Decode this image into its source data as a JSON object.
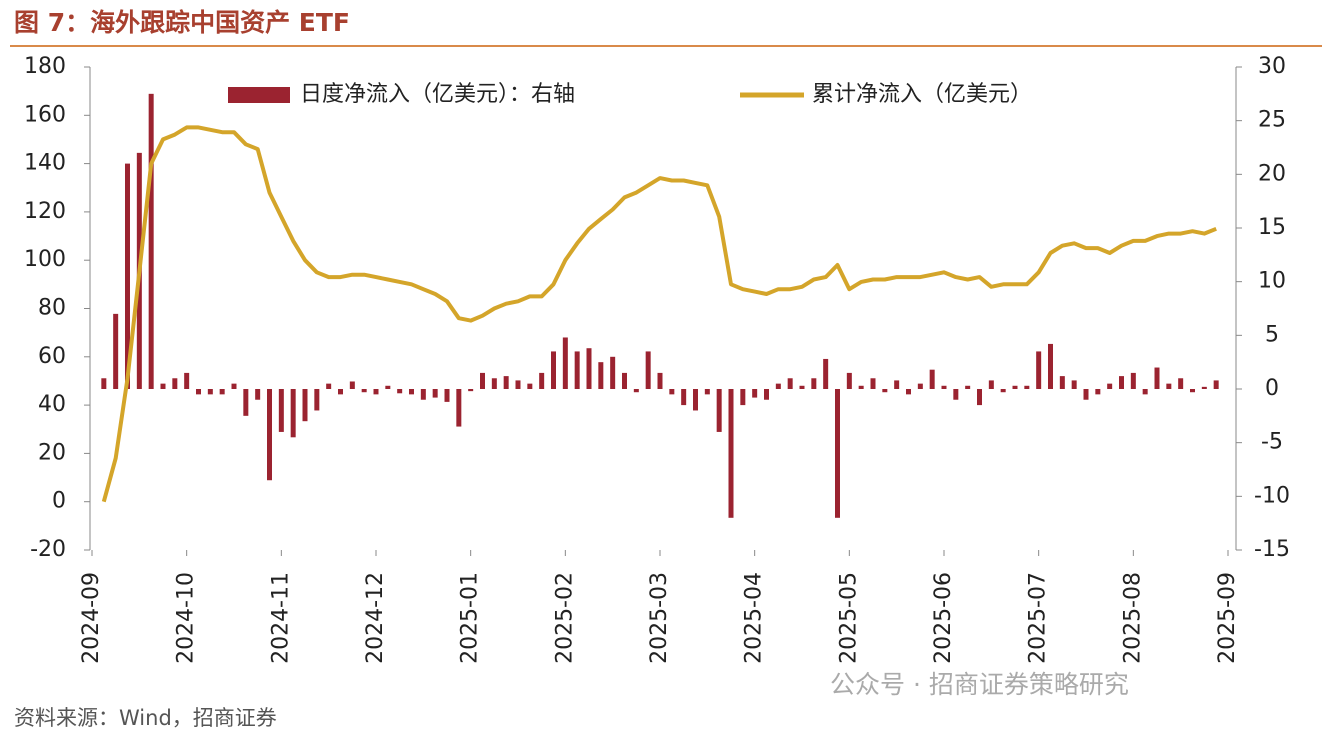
{
  "chart_data": {
    "type": "combo",
    "title": "图 7：海外跟踪中国资产 ETF",
    "source": "资料来源：Wind，招商证券",
    "watermark": "公众号 · 招商证券策略研究",
    "categories": [
      "2024-09",
      null,
      null,
      null,
      null,
      null,
      null,
      null,
      "2024-10",
      null,
      null,
      null,
      null,
      null,
      null,
      null,
      "2024-11",
      null,
      null,
      null,
      null,
      null,
      null,
      null,
      "2024-12",
      null,
      null,
      null,
      null,
      null,
      null,
      null,
      "2025-01",
      null,
      null,
      null,
      null,
      null,
      null,
      null,
      "2025-02",
      null,
      null,
      null,
      null,
      null,
      null,
      null,
      "2025-03",
      null,
      null,
      null,
      null,
      null,
      null,
      null,
      "2025-04",
      null,
      null,
      null,
      null,
      null,
      null,
      null,
      "2025-05",
      null,
      null,
      null,
      null,
      null,
      null,
      null,
      "2025-06",
      null,
      null,
      null,
      null,
      null,
      null,
      null,
      "2025-07",
      null,
      null,
      null,
      null,
      null,
      null,
      null,
      "2025-08",
      null,
      null,
      null,
      null,
      null,
      null,
      null,
      "2025-09"
    ],
    "ylim": [
      -20,
      180
    ],
    "yticks": [
      -20,
      0,
      20,
      40,
      60,
      80,
      100,
      120,
      140,
      160,
      180
    ],
    "y2lim": [
      -15,
      30
    ],
    "y2ticks": [
      -15,
      -10,
      -5,
      0,
      5,
      10,
      15,
      20,
      25,
      30
    ],
    "legend": "top",
    "series": [
      {
        "name": "日度净流入（亿美元）：右轴",
        "type": "bar",
        "axis": "y2",
        "color": "#9b2330",
        "values": [
          null,
          1,
          7,
          21,
          22,
          27.5,
          0.5,
          1,
          1.5,
          -0.5,
          -0.5,
          -0.5,
          0.5,
          -2.5,
          -1,
          -8.5,
          -4,
          -4.5,
          -3,
          -2,
          0.5,
          -0.5,
          0.7,
          -0.3,
          -0.5,
          0.3,
          -0.4,
          -0.5,
          -1,
          -0.8,
          -1.2,
          -3.5,
          -0.2,
          1.5,
          1,
          1.2,
          0.8,
          0.5,
          1.5,
          3.5,
          4.8,
          3.5,
          3.8,
          2.5,
          3,
          1.5,
          -0.3,
          3.5,
          1.5,
          -0.5,
          -1.5,
          -2,
          -0.5,
          -4,
          -12,
          -1.5,
          -0.8,
          -1,
          0.5,
          1,
          0.3,
          1,
          2.8,
          -12,
          1.5,
          0.3,
          1,
          -0.3,
          0.8,
          -0.5,
          0.5,
          1.8,
          0.3,
          -1,
          0.3,
          -1.5,
          0.8,
          -0.3,
          0.3,
          0.3,
          3.5,
          4.2,
          1.2,
          0.8,
          -1,
          -0.5,
          0.5,
          1.2,
          1.5,
          -0.5,
          2,
          0.5,
          1,
          -0.3,
          0.2,
          0.8,
          null
        ]
      },
      {
        "name": "累计净流入（亿美元）",
        "type": "line",
        "color": "#d4a52a",
        "values": [
          null,
          0,
          18,
          51,
          95,
          140,
          150,
          152,
          155,
          155,
          154,
          153,
          153,
          148,
          146,
          128,
          118,
          108,
          100,
          95,
          93,
          93,
          94,
          94,
          93,
          92,
          91,
          90,
          88,
          86,
          83,
          76,
          75,
          77,
          80,
          82,
          83,
          85,
          85,
          90,
          100,
          107,
          113,
          117,
          121,
          126,
          128,
          131,
          134,
          133,
          133,
          132,
          131,
          118,
          90,
          88,
          87,
          86,
          88,
          88,
          89,
          92,
          93,
          98,
          88,
          91,
          92,
          92,
          93,
          93,
          93,
          94,
          95,
          93,
          92,
          93,
          89,
          90,
          90,
          90,
          95,
          103,
          106,
          107,
          105,
          105,
          103,
          106,
          108,
          108,
          110,
          111,
          111,
          112,
          111,
          113,
          null
        ]
      }
    ]
  }
}
